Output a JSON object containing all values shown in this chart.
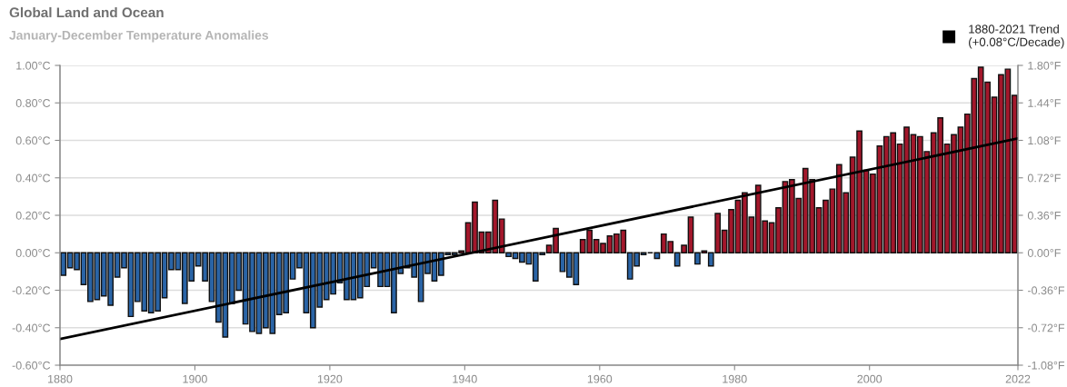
{
  "chart_data": {
    "type": "bar",
    "title": "Global Land and Ocean",
    "subtitle": "January-December Temperature Anomalies",
    "x": [
      1880,
      1881,
      1882,
      1883,
      1884,
      1885,
      1886,
      1887,
      1888,
      1889,
      1890,
      1891,
      1892,
      1893,
      1894,
      1895,
      1896,
      1897,
      1898,
      1899,
      1900,
      1901,
      1902,
      1903,
      1904,
      1905,
      1906,
      1907,
      1908,
      1909,
      1910,
      1911,
      1912,
      1913,
      1914,
      1915,
      1916,
      1917,
      1918,
      1919,
      1920,
      1921,
      1922,
      1923,
      1924,
      1925,
      1926,
      1927,
      1928,
      1929,
      1930,
      1931,
      1932,
      1933,
      1934,
      1935,
      1936,
      1937,
      1938,
      1939,
      1940,
      1941,
      1942,
      1943,
      1944,
      1945,
      1946,
      1947,
      1948,
      1949,
      1950,
      1951,
      1952,
      1953,
      1954,
      1955,
      1956,
      1957,
      1958,
      1959,
      1960,
      1961,
      1962,
      1963,
      1964,
      1965,
      1966,
      1967,
      1968,
      1969,
      1970,
      1971,
      1972,
      1973,
      1974,
      1975,
      1976,
      1977,
      1978,
      1979,
      1980,
      1981,
      1982,
      1983,
      1984,
      1985,
      1986,
      1987,
      1988,
      1989,
      1990,
      1991,
      1992,
      1993,
      1994,
      1995,
      1996,
      1997,
      1998,
      1999,
      2000,
      2001,
      2002,
      2003,
      2004,
      2005,
      2006,
      2007,
      2008,
      2009,
      2010,
      2011,
      2012,
      2013,
      2014,
      2015,
      2016,
      2017,
      2018,
      2019,
      2020,
      2021
    ],
    "series": [
      {
        "values": [
          -0.12,
          -0.08,
          -0.09,
          -0.17,
          -0.26,
          -0.25,
          -0.23,
          -0.28,
          -0.13,
          -0.08,
          -0.34,
          -0.26,
          -0.31,
          -0.32,
          -0.31,
          -0.24,
          -0.09,
          -0.09,
          -0.27,
          -0.15,
          -0.07,
          -0.15,
          -0.26,
          -0.37,
          -0.45,
          -0.27,
          -0.2,
          -0.38,
          -0.42,
          -0.43,
          -0.4,
          -0.43,
          -0.33,
          -0.32,
          -0.14,
          -0.08,
          -0.32,
          -0.4,
          -0.29,
          -0.25,
          -0.22,
          -0.16,
          -0.25,
          -0.25,
          -0.24,
          -0.18,
          -0.08,
          -0.18,
          -0.18,
          -0.32,
          -0.11,
          -0.08,
          -0.13,
          -0.26,
          -0.11,
          -0.15,
          -0.12,
          -0.01,
          -0.01,
          0.01,
          0.16,
          0.27,
          0.11,
          0.11,
          0.28,
          0.18,
          -0.02,
          -0.03,
          -0.05,
          -0.06,
          -0.15,
          -0.01,
          0.04,
          0.13,
          -0.1,
          -0.13,
          -0.17,
          0.07,
          0.12,
          0.07,
          0.05,
          0.09,
          0.1,
          0.12,
          -0.14,
          -0.07,
          -0.01,
          0.0,
          -0.03,
          0.1,
          0.06,
          -0.07,
          0.04,
          0.19,
          -0.06,
          0.01,
          -0.07,
          0.21,
          0.12,
          0.23,
          0.28,
          0.32,
          0.19,
          0.36,
          0.17,
          0.16,
          0.24,
          0.38,
          0.39,
          0.29,
          0.45,
          0.39,
          0.24,
          0.28,
          0.34,
          0.47,
          0.32,
          0.51,
          0.65,
          0.44,
          0.42,
          0.57,
          0.62,
          0.64,
          0.58,
          0.67,
          0.63,
          0.62,
          0.54,
          0.64,
          0.72,
          0.58,
          0.63,
          0.67,
          0.74,
          0.93,
          0.99,
          0.91,
          0.83,
          0.95,
          0.98,
          0.84
        ],
        "colors": [
          "#2a64a6",
          "#2a64a6",
          "#2a64a6",
          "#2a64a6",
          "#2a64a6",
          "#2a64a6",
          "#2a64a6",
          "#2a64a6",
          "#2a64a6",
          "#2a64a6",
          "#2a64a6",
          "#2a64a6",
          "#2a64a6",
          "#2a64a6",
          "#2a64a6",
          "#2a64a6",
          "#2a64a6",
          "#2a64a6",
          "#2a64a6",
          "#2a64a6",
          "#2a64a6",
          "#2a64a6",
          "#2a64a6",
          "#2a64a6",
          "#2a64a6",
          "#2a64a6",
          "#2a64a6",
          "#2a64a6",
          "#2a64a6",
          "#2a64a6",
          "#2a64a6",
          "#2a64a6",
          "#2a64a6",
          "#2a64a6",
          "#2a64a6",
          "#2a64a6",
          "#2a64a6",
          "#2a64a6",
          "#2a64a6",
          "#2a64a6",
          "#2a64a6",
          "#2a64a6",
          "#2a64a6",
          "#2a64a6",
          "#2a64a6",
          "#2a64a6",
          "#2a64a6",
          "#2a64a6",
          "#2a64a6",
          "#2a64a6",
          "#2a64a6",
          "#2a64a6",
          "#2a64a6",
          "#2a64a6",
          "#2a64a6",
          "#2a64a6",
          "#2a64a6",
          "#2a64a6",
          "#2a64a6",
          "#a3172b",
          "#a3172b",
          "#a3172b",
          "#a3172b",
          "#a3172b",
          "#a3172b",
          "#a3172b",
          "#2a64a6",
          "#2a64a6",
          "#2a64a6",
          "#2a64a6",
          "#2a64a6",
          "#2a64a6",
          "#a3172b",
          "#a3172b",
          "#2a64a6",
          "#2a64a6",
          "#2a64a6",
          "#a3172b",
          "#a3172b",
          "#a3172b",
          "#a3172b",
          "#a3172b",
          "#a3172b",
          "#a3172b",
          "#2a64a6",
          "#2a64a6",
          "#2a64a6",
          "#111111",
          "#2a64a6",
          "#a3172b",
          "#a3172b",
          "#2a64a6",
          "#a3172b",
          "#a3172b",
          "#2a64a6",
          "#a3172b",
          "#2a64a6",
          "#a3172b",
          "#a3172b",
          "#a3172b",
          "#a3172b",
          "#a3172b",
          "#a3172b",
          "#a3172b",
          "#a3172b",
          "#a3172b",
          "#a3172b",
          "#a3172b",
          "#a3172b",
          "#a3172b",
          "#a3172b",
          "#a3172b",
          "#a3172b",
          "#a3172b",
          "#a3172b",
          "#a3172b",
          "#a3172b",
          "#a3172b",
          "#a3172b",
          "#a3172b",
          "#a3172b",
          "#a3172b",
          "#a3172b",
          "#a3172b",
          "#a3172b",
          "#a3172b",
          "#a3172b",
          "#a3172b",
          "#a3172b",
          "#a3172b",
          "#a3172b",
          "#a3172b",
          "#a3172b",
          "#a3172b",
          "#a3172b",
          "#a3172b",
          "#a3172b",
          "#a3172b",
          "#a3172b",
          "#a3172b",
          "#a3172b",
          "#a3172b"
        ]
      },
      {
        "type": "line",
        "name": "1880-2021 Trend\n(+0.08°C/Decade)",
        "color": "#000000",
        "x": [
          1880,
          2022
        ],
        "values": [
          -0.46,
          0.61
        ]
      }
    ],
    "xlim": [
      1880,
      2022
    ],
    "xticks": [
      1880,
      1900,
      1920,
      1940,
      1960,
      1980,
      2000,
      2022
    ],
    "ylim": [
      -0.6,
      1.0
    ],
    "yticks": [
      {
        "value": -0.6,
        "label": "-0.60°C"
      },
      {
        "value": -0.4,
        "label": "-0.40°C"
      },
      {
        "value": -0.2,
        "label": "-0.20°C"
      },
      {
        "value": 0.0,
        "label": "0.00°C"
      },
      {
        "value": 0.2,
        "label": "0.20°C"
      },
      {
        "value": 0.4,
        "label": "0.40°C"
      },
      {
        "value": 0.6,
        "label": "0.60°C"
      },
      {
        "value": 0.8,
        "label": "0.80°C"
      },
      {
        "value": 1.0,
        "label": "1.00°C"
      }
    ],
    "y2lim": [
      -1.08,
      1.8
    ],
    "y2ticks": [
      {
        "value": -1.08,
        "label": "-1.08°F"
      },
      {
        "value": -0.72,
        "label": "-0.72°F"
      },
      {
        "value": -0.36,
        "label": "-0.36°F"
      },
      {
        "value": 0.0,
        "label": "0.00°F"
      },
      {
        "value": 0.36,
        "label": "0.36°F"
      },
      {
        "value": 0.72,
        "label": "0.72°F"
      },
      {
        "value": 1.08,
        "label": "1.08°F"
      },
      {
        "value": 1.44,
        "label": "1.44°F"
      },
      {
        "value": 1.8,
        "label": "1.80°F"
      }
    ],
    "grid": "y",
    "legend": "top right"
  }
}
